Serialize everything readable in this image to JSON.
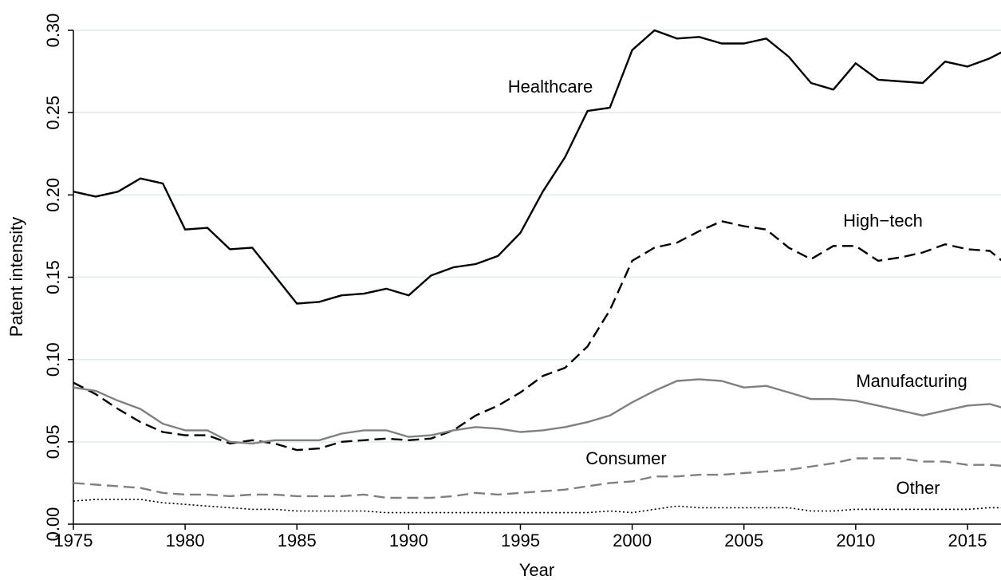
{
  "chart_data": {
    "type": "line",
    "x_label": "Year",
    "y_label": "Patent intensity",
    "x": [
      1975,
      1976,
      1977,
      1978,
      1979,
      1980,
      1981,
      1982,
      1983,
      1984,
      1985,
      1986,
      1987,
      1988,
      1989,
      1990,
      1991,
      1992,
      1993,
      1994,
      1995,
      1996,
      1997,
      1998,
      1999,
      2000,
      2001,
      2002,
      2003,
      2004,
      2005,
      2006,
      2007,
      2008,
      2009,
      2010,
      2011,
      2012,
      2013,
      2014,
      2015,
      2016,
      2017
    ],
    "series": [
      {
        "name": "Healthcare",
        "color": "#000000",
        "style": "solid",
        "values": [
          0.202,
          0.199,
          0.202,
          0.21,
          0.207,
          0.179,
          0.18,
          0.167,
          0.168,
          0.151,
          0.134,
          0.135,
          0.139,
          0.14,
          0.143,
          0.139,
          0.151,
          0.156,
          0.158,
          0.163,
          0.177,
          0.202,
          0.223,
          0.251,
          0.253,
          0.288,
          0.3,
          0.295,
          0.296,
          0.292,
          0.292,
          0.295,
          0.284,
          0.268,
          0.264,
          0.28,
          0.27,
          0.269,
          0.268,
          0.281,
          0.278,
          0.283,
          0.29
        ]
      },
      {
        "name": "High−tech",
        "color": "#000000",
        "style": "dashed",
        "values": [
          0.086,
          0.079,
          0.07,
          0.062,
          0.056,
          0.054,
          0.054,
          0.049,
          0.051,
          0.049,
          0.045,
          0.046,
          0.05,
          0.051,
          0.052,
          0.051,
          0.052,
          0.057,
          0.066,
          0.072,
          0.08,
          0.09,
          0.095,
          0.108,
          0.13,
          0.16,
          0.168,
          0.171,
          0.178,
          0.184,
          0.181,
          0.179,
          0.168,
          0.161,
          0.169,
          0.169,
          0.16,
          0.162,
          0.165,
          0.17,
          0.167,
          0.166,
          0.155
        ]
      },
      {
        "name": "Manufacturing",
        "color": "#808080",
        "style": "solid",
        "values": [
          0.083,
          0.081,
          0.075,
          0.07,
          0.061,
          0.057,
          0.057,
          0.05,
          0.049,
          0.051,
          0.051,
          0.051,
          0.055,
          0.057,
          0.057,
          0.053,
          0.054,
          0.057,
          0.059,
          0.058,
          0.056,
          0.057,
          0.059,
          0.062,
          0.066,
          0.074,
          0.081,
          0.087,
          0.088,
          0.087,
          0.083,
          0.084,
          0.08,
          0.076,
          0.076,
          0.075,
          0.072,
          0.069,
          0.066,
          0.069,
          0.072,
          0.073,
          0.069
        ]
      },
      {
        "name": "Consumer",
        "color": "#808080",
        "style": "dashed",
        "values": [
          0.025,
          0.024,
          0.023,
          0.022,
          0.019,
          0.018,
          0.018,
          0.017,
          0.018,
          0.018,
          0.017,
          0.017,
          0.017,
          0.018,
          0.016,
          0.016,
          0.016,
          0.017,
          0.019,
          0.018,
          0.019,
          0.02,
          0.021,
          0.023,
          0.025,
          0.026,
          0.029,
          0.029,
          0.03,
          0.03,
          0.031,
          0.032,
          0.033,
          0.035,
          0.037,
          0.04,
          0.04,
          0.04,
          0.038,
          0.038,
          0.036,
          0.036,
          0.035
        ]
      },
      {
        "name": "Other",
        "color": "#000000",
        "style": "dotted",
        "values": [
          0.014,
          0.015,
          0.015,
          0.015,
          0.013,
          0.012,
          0.011,
          0.01,
          0.009,
          0.009,
          0.008,
          0.008,
          0.008,
          0.008,
          0.007,
          0.007,
          0.007,
          0.007,
          0.007,
          0.007,
          0.007,
          0.007,
          0.007,
          0.007,
          0.008,
          0.007,
          0.009,
          0.011,
          0.01,
          0.01,
          0.01,
          0.01,
          0.01,
          0.008,
          0.008,
          0.009,
          0.009,
          0.009,
          0.009,
          0.009,
          0.009,
          0.01,
          0.01
        ]
      }
    ],
    "xlim": [
      1975,
      2016.5
    ],
    "xticks": [
      1975,
      1980,
      1985,
      1990,
      1995,
      2000,
      2005,
      2010,
      2015
    ],
    "ylim": [
      0,
      0.3
    ],
    "yticks": [
      {
        "value": 0,
        "label": "0.00"
      },
      {
        "value": 0.05,
        "label": "0.05"
      },
      {
        "value": 0.1,
        "label": "0.10"
      },
      {
        "value": 0.15,
        "label": "0.15"
      },
      {
        "value": 0.2,
        "label": "0.20"
      },
      {
        "value": 0.25,
        "label": "0.25"
      },
      {
        "value": 0.3,
        "label": "0.30"
      }
    ],
    "grid": true
  }
}
